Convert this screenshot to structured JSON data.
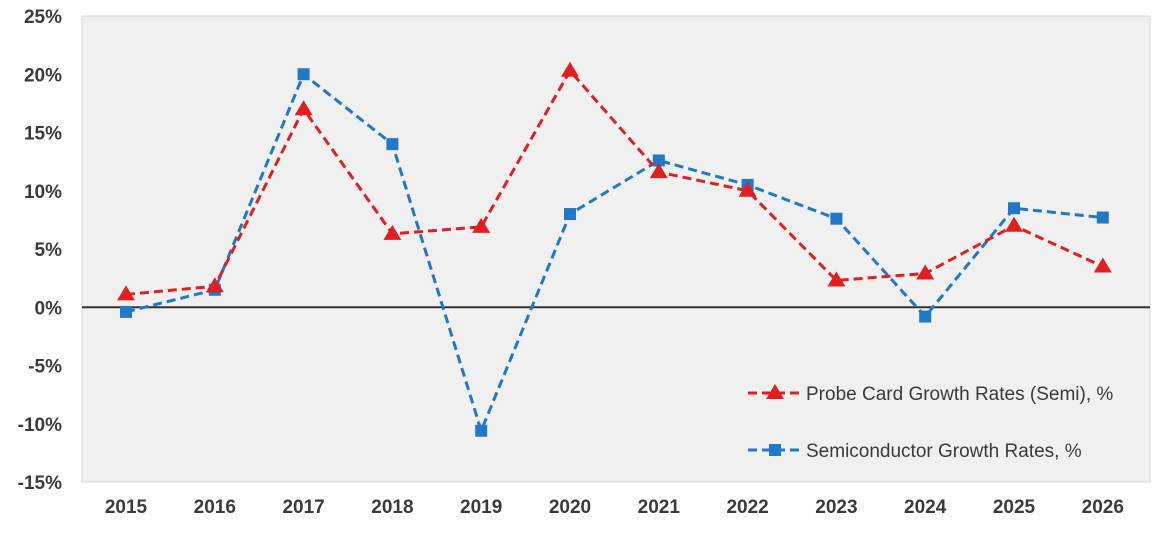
{
  "chart_data": {
    "type": "line",
    "title": "",
    "xlabel": "",
    "ylabel": "",
    "categories": [
      "2015",
      "2016",
      "2017",
      "2018",
      "2019",
      "2020",
      "2021",
      "2022",
      "2023",
      "2024",
      "2025",
      "2026"
    ],
    "ylim": [
      -15,
      25
    ],
    "yticks": [
      -15,
      -10,
      -5,
      0,
      5,
      10,
      15,
      20,
      25
    ],
    "ytick_labels": [
      "-15%",
      "-10%",
      "-5%",
      "0%",
      "5%",
      "10%",
      "15%",
      "20%",
      "25%"
    ],
    "grid": false,
    "legend_position": "bottom-right",
    "series": [
      {
        "name": "Probe Card Growth Rates (Semi), %",
        "color": "#e02020",
        "marker": "triangle",
        "line_style": "dashed",
        "values": [
          1.1,
          1.8,
          17.0,
          6.3,
          6.9,
          20.3,
          11.6,
          10.0,
          2.3,
          2.9,
          7.0,
          3.5
        ]
      },
      {
        "name": "Semiconductor Growth Rates, %",
        "color": "#1f78c8",
        "marker": "square",
        "line_style": "dashed",
        "values": [
          -0.4,
          1.5,
          20.0,
          14.0,
          -10.6,
          8.0,
          12.6,
          10.5,
          7.6,
          -0.8,
          8.5,
          7.7
        ]
      }
    ]
  }
}
